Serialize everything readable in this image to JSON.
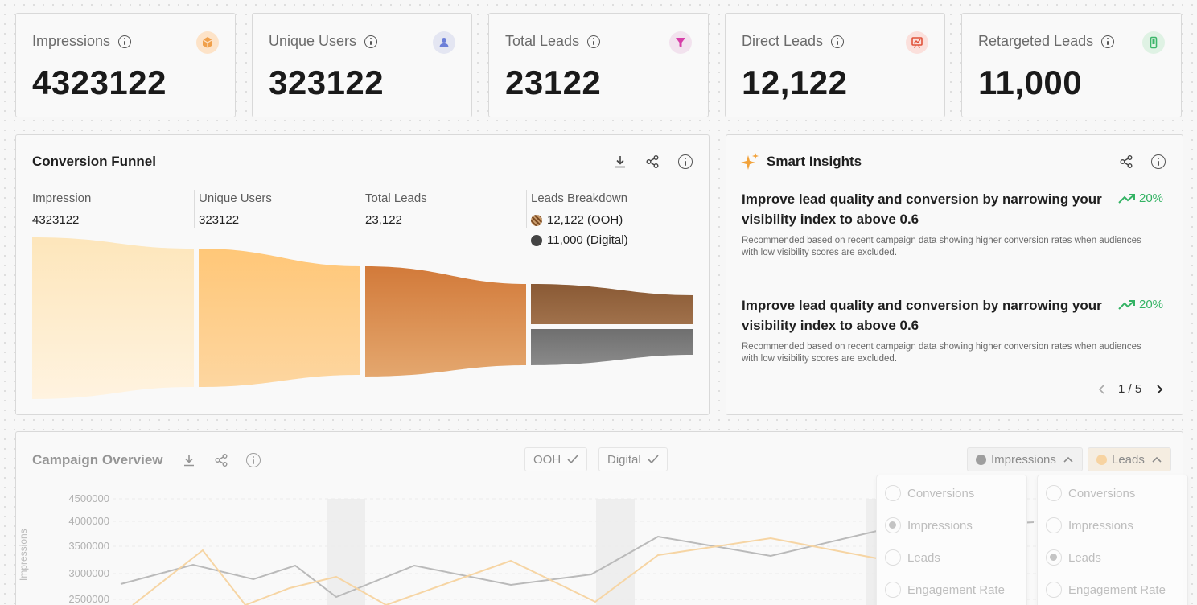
{
  "kpis": [
    {
      "label": "Impressions",
      "value": "4323122",
      "icon": "box-icon",
      "badge_color": "#fde3c8",
      "icon_color": "#f0a04b"
    },
    {
      "label": "Unique Users",
      "value": "323122",
      "icon": "user-icon",
      "badge_color": "#e4e6f2",
      "icon_color": "#6c7fd8"
    },
    {
      "label": "Total Leads",
      "value": "23122",
      "icon": "funnel-icon",
      "badge_color": "#f2e2ee",
      "icon_color": "#d63fa8"
    },
    {
      "label": "Direct Leads",
      "value": "12,122",
      "icon": "billboard-icon",
      "badge_color": "#fbe0dc",
      "icon_color": "#e0523a"
    },
    {
      "label": "Retargeted Leads",
      "value": "11,000",
      "icon": "phone-icon",
      "badge_color": "#dff2e4",
      "icon_color": "#3cb66a"
    }
  ],
  "funnel": {
    "title": "Conversion Funnel",
    "stages": [
      {
        "label": "Impression",
        "value": "4323122"
      },
      {
        "label": "Unique Users",
        "value": "323122"
      },
      {
        "label": "Total Leads",
        "value": "23,122"
      }
    ],
    "breakdown": {
      "label": "Leads Breakdown",
      "items": [
        {
          "text": "12,122 (OOH)",
          "color": "#7a4a22"
        },
        {
          "text": "11,000 (Digital)",
          "color": "#444444"
        }
      ]
    }
  },
  "insights": {
    "title": "Smart Insights",
    "items": [
      {
        "title": "Improve lead quality and conversion by narrowing your visibility index to above 0.6",
        "pct": "20%",
        "desc": "Recommended based on recent campaign data showing higher conversion rates when audiences with low visibility scores are excluded."
      },
      {
        "title": "Improve lead quality and conversion by narrowing your visibility index to above 0.6",
        "pct": "20%",
        "desc": "Recommended based on recent campaign data showing higher conversion rates when audiences with low visibility scores are excluded."
      }
    ],
    "pagination": "1 / 5"
  },
  "overview": {
    "title": "Campaign Overview",
    "filters": [
      {
        "label": "OOH",
        "checked": true
      },
      {
        "label": "Digital",
        "checked": true
      }
    ],
    "selectors": [
      {
        "label": "Impressions",
        "color": "#555555"
      },
      {
        "label": "Leads",
        "color": "#f7b55a"
      }
    ],
    "menus": [
      {
        "options": [
          "Conversions",
          "Impressions",
          "Leads",
          "Engagement Rate"
        ],
        "selected": "Impressions"
      },
      {
        "options": [
          "Conversions",
          "Impressions",
          "Leads",
          "Engagement Rate"
        ],
        "selected": "Leads"
      }
    ],
    "y_axis_label": "Impressions",
    "y_ticks": [
      "4500000",
      "4000000",
      "3500000",
      "3000000",
      "2500000"
    ]
  }
}
